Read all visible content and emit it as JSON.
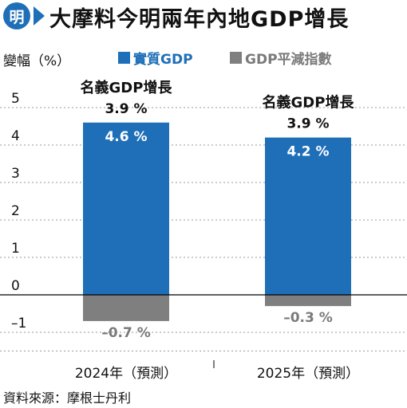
{
  "header": {
    "logo_text": "明",
    "title": "大摩料今明兩年內地GDP增長"
  },
  "legend": {
    "unit_label": "變幅（%）",
    "items": [
      "實質GDP",
      "GDP平減指數"
    ]
  },
  "colors": {
    "real_gdp": "#1f6fb8",
    "deflator": "#7f7f7f",
    "brand": "#1f6fb8"
  },
  "source": "資料來源：摩根士丹利",
  "chart_data": {
    "type": "bar",
    "stacked": true,
    "categories": [
      "2024年（預測）",
      "2025年（預測）"
    ],
    "series": [
      {
        "name": "實質GDP",
        "values": [
          4.6,
          4.2
        ],
        "labels": [
          "4.6 %",
          "4.2 %"
        ]
      },
      {
        "name": "GDP平減指數",
        "values": [
          -0.7,
          -0.3
        ],
        "labels": [
          "–0.7 %",
          "–0.3 %"
        ]
      }
    ],
    "annotations": [
      {
        "category": "2024年（預測）",
        "label": "名義GDP增長",
        "value": "3.9 %"
      },
      {
        "category": "2025年（預測）",
        "label": "名義GDP增長",
        "value": "3.9 %"
      }
    ],
    "yticks": [
      "5",
      "4",
      "3",
      "2",
      "1",
      "0",
      "–1"
    ],
    "ylim": [
      -1.5,
      5.5
    ],
    "grid": true,
    "ylabel": "變幅（%）"
  }
}
